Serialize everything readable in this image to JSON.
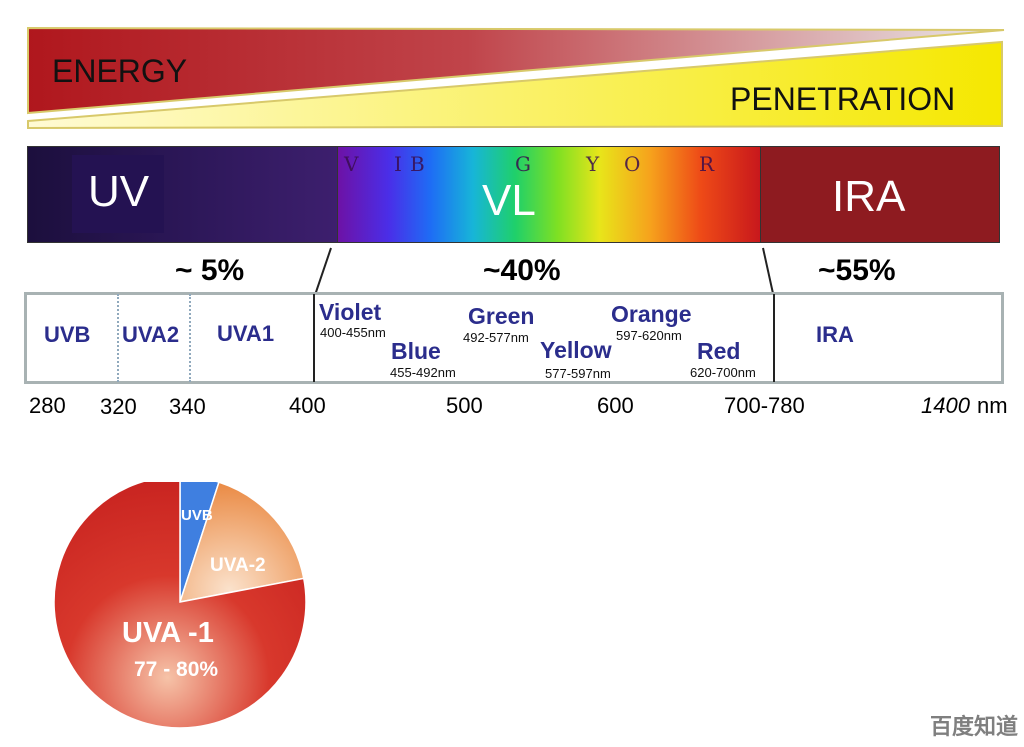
{
  "header": {
    "energy_label": "ENERGY",
    "penetration_label": "PENETRATION",
    "colors": {
      "energy_dark": "#b0171d",
      "energy_light": "#e6e6e6",
      "penetration_dark": "#f5e800",
      "penetration_light": "#fffbd0"
    }
  },
  "spectrum": {
    "uv_label": "UV",
    "vl_label": "VL",
    "ira_label": "IRA",
    "vl_letters": [
      "V",
      "I",
      "B",
      "G",
      "Y",
      "O",
      "R"
    ]
  },
  "percentages": {
    "uv": "~ 5%",
    "vl": "~40%",
    "ira": "~55%"
  },
  "ranges": {
    "uvb": "UVB",
    "uva2": "UVA2",
    "uva1": "UVA1",
    "ira": "IRA",
    "colors": [
      {
        "name": "Violet",
        "range": "400-455nm"
      },
      {
        "name": "Blue",
        "range": "455-492nm"
      },
      {
        "name": "Green",
        "range": "492-577nm"
      },
      {
        "name": "Yellow",
        "range": "577-597nm"
      },
      {
        "name": "Orange",
        "range": "597-620nm"
      },
      {
        "name": "Red",
        "range": "620-700nm"
      }
    ]
  },
  "axis": {
    "ticks": [
      "280",
      "320",
      "340",
      "400",
      "500",
      "600",
      "700-780",
      "1400",
      "nm"
    ]
  },
  "pie": {
    "slices": [
      {
        "label": "UVB",
        "value": 5,
        "color": "#3f7fe0"
      },
      {
        "label": "UVA-2",
        "value": 17,
        "color": "#ee9a5a"
      },
      {
        "label": "UVA -1",
        "value": 78,
        "color": "#d02a24"
      }
    ],
    "uva1_percent": "77 - 80%"
  },
  "watermark": {
    "text": "百度知道"
  }
}
